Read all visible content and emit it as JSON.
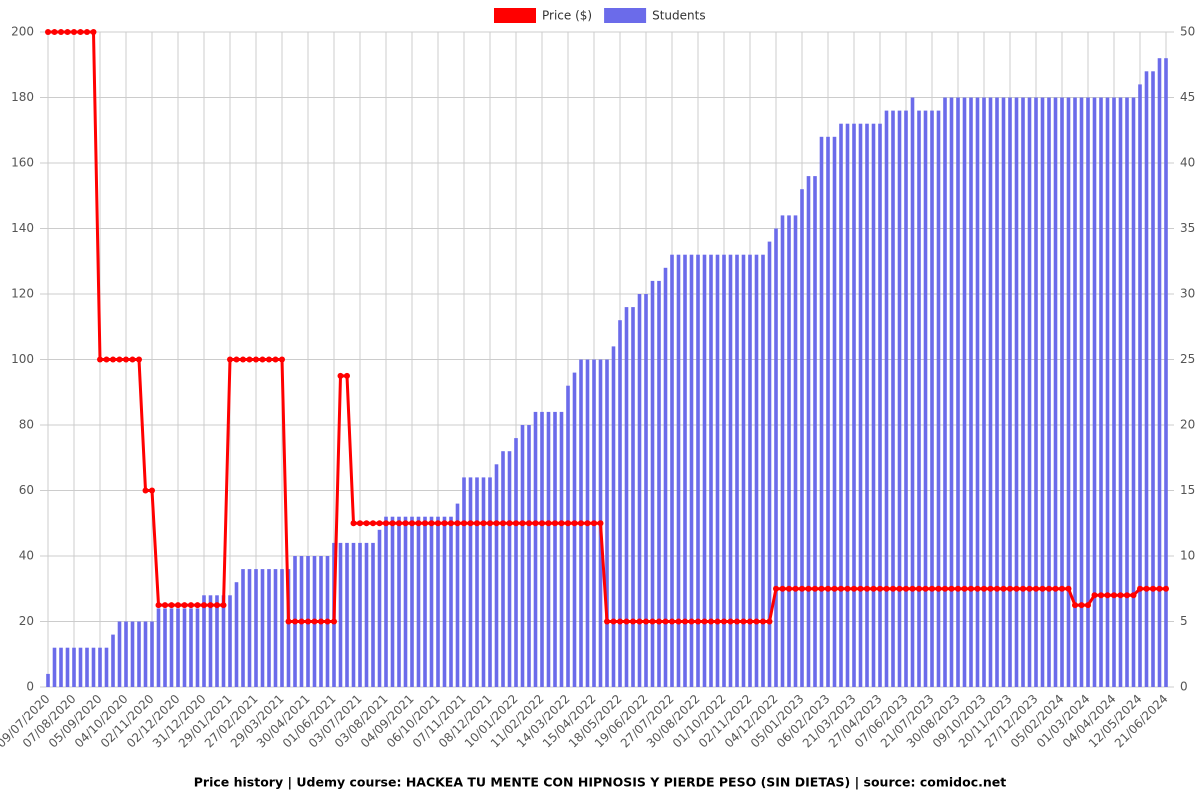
{
  "chart_data": {
    "type": "bar-line",
    "title": "Price history | Udemy course: HACKEA TU MENTE CON HIPNOSIS Y PIERDE PESO (SIN DIETAS) | source: comidoc.net",
    "categories": [
      "09/07/2020",
      null,
      null,
      null,
      "07/08/2020",
      null,
      null,
      null,
      "05/09/2020",
      null,
      null,
      null,
      "04/10/2020",
      null,
      null,
      null,
      "02/11/2020",
      null,
      null,
      null,
      "02/12/2020",
      null,
      null,
      null,
      "31/12/2020",
      null,
      null,
      null,
      "29/01/2021",
      null,
      null,
      null,
      "27/02/2021",
      null,
      null,
      null,
      "29/03/2021",
      null,
      null,
      null,
      "30/04/2021",
      null,
      null,
      null,
      "01/06/2021",
      null,
      null,
      null,
      "03/07/2021",
      null,
      null,
      null,
      "03/08/2021",
      null,
      null,
      null,
      "04/09/2021",
      null,
      null,
      null,
      "06/10/2021",
      null,
      null,
      null,
      "07/11/2021",
      null,
      null,
      null,
      "08/12/2021",
      null,
      null,
      null,
      "10/01/2022",
      null,
      null,
      null,
      "11/02/2022",
      null,
      null,
      null,
      "14/03/2022",
      null,
      null,
      null,
      "15/04/2022",
      null,
      null,
      null,
      "18/05/2022",
      null,
      null,
      null,
      "19/06/2022",
      null,
      null,
      null,
      "27/07/2022",
      null,
      null,
      null,
      "30/08/2022",
      null,
      null,
      null,
      "01/10/2022",
      null,
      null,
      null,
      "02/11/2022",
      null,
      null,
      null,
      "04/12/2022",
      null,
      null,
      null,
      "05/01/2023",
      null,
      null,
      null,
      "06/02/2023",
      null,
      null,
      null,
      "21/03/2023",
      null,
      null,
      null,
      "27/04/2023",
      null,
      null,
      null,
      "07/06/2023",
      null,
      null,
      null,
      "21/07/2023",
      null,
      null,
      null,
      "30/08/2023",
      null,
      null,
      null,
      "09/10/2023",
      null,
      null,
      null,
      "20/11/2023",
      null,
      null,
      null,
      "27/12/2023",
      null,
      null,
      null,
      "05/02/2024",
      null,
      null,
      null,
      "01/03/2024",
      null,
      null,
      null,
      "04/04/2024",
      null,
      null,
      null,
      "12/05/2024",
      null,
      null,
      null,
      "21/06/2024"
    ],
    "series": [
      {
        "name": "Price ($)",
        "type": "line",
        "color": "#ff0000",
        "values": [
          200,
          200,
          200,
          200,
          200,
          200,
          200,
          200,
          100,
          100,
          100,
          100,
          100,
          100,
          100,
          60,
          60,
          25,
          25,
          25,
          25,
          25,
          25,
          25,
          25,
          25,
          25,
          25,
          100,
          100,
          100,
          100,
          100,
          100,
          100,
          100,
          100,
          20,
          20,
          20,
          20,
          20,
          20,
          20,
          20,
          95,
          95,
          50,
          50,
          50,
          50,
          50,
          50,
          50,
          50,
          50,
          50,
          50,
          50,
          50,
          50,
          50,
          50,
          50,
          50,
          50,
          50,
          50,
          50,
          50,
          50,
          50,
          50,
          50,
          50,
          50,
          50,
          50,
          50,
          50,
          50,
          50,
          50,
          50,
          50,
          50,
          20,
          20,
          20,
          20,
          20,
          20,
          20,
          20,
          20,
          20,
          20,
          20,
          20,
          20,
          20,
          20,
          20,
          20,
          20,
          20,
          20,
          20,
          20,
          20,
          20,
          20,
          30,
          30,
          30,
          30,
          30,
          30,
          30,
          30,
          30,
          30,
          30,
          30,
          30,
          30,
          30,
          30,
          30,
          30,
          30,
          30,
          30,
          30,
          30,
          30,
          30,
          30,
          30,
          30,
          30,
          30,
          30,
          30,
          30,
          30,
          30,
          30,
          30,
          30,
          30,
          30,
          30,
          30,
          30,
          30,
          30,
          30,
          25,
          25,
          25,
          28,
          28,
          28,
          28,
          28,
          28,
          28,
          30,
          30,
          30,
          30,
          30
        ]
      },
      {
        "name": "Students",
        "type": "bar",
        "axis": "y2",
        "color": "#6b6bea",
        "values": [
          1,
          3,
          3,
          3,
          3,
          3,
          3,
          3,
          3,
          3,
          4,
          5,
          5,
          5,
          5,
          5,
          5,
          6,
          6,
          6,
          6,
          6,
          6,
          6,
          7,
          7,
          7,
          7,
          7,
          8,
          9,
          9,
          9,
          9,
          9,
          9,
          9,
          9,
          10,
          10,
          10,
          10,
          10,
          10,
          11,
          11,
          11,
          11,
          11,
          11,
          11,
          12,
          13,
          13,
          13,
          13,
          13,
          13,
          13,
          13,
          13,
          13,
          13,
          14,
          16,
          16,
          16,
          16,
          16,
          17,
          18,
          18,
          19,
          20,
          20,
          21,
          21,
          21,
          21,
          21,
          23,
          24,
          25,
          25,
          25,
          25,
          25,
          26,
          28,
          29,
          29,
          30,
          30,
          31,
          31,
          32,
          33,
          33,
          33,
          33,
          33,
          33,
          33,
          33,
          33,
          33,
          33,
          33,
          33,
          33,
          33,
          34,
          35,
          36,
          36,
          36,
          38,
          39,
          39,
          42,
          42,
          42,
          43,
          43,
          43,
          43,
          43,
          43,
          43,
          44,
          44,
          44,
          44,
          45,
          44,
          44,
          44,
          44,
          45,
          45,
          45,
          45,
          45,
          45,
          45,
          45,
          45,
          45,
          45,
          45,
          45,
          45,
          45,
          45,
          45,
          45,
          45,
          45,
          45,
          45,
          45,
          45,
          45,
          45,
          45,
          45,
          45,
          45,
          46,
          47,
          47,
          48,
          48
        ]
      }
    ],
    "ylim": [
      0,
      200
    ],
    "yticks": [
      0,
      20,
      40,
      60,
      80,
      100,
      120,
      140,
      160,
      180,
      200
    ],
    "y2lim": [
      0,
      50
    ],
    "y2ticks": [
      0,
      5,
      10,
      15,
      20,
      25,
      30,
      35,
      40,
      45,
      50
    ],
    "grid": true,
    "legend": "top"
  }
}
